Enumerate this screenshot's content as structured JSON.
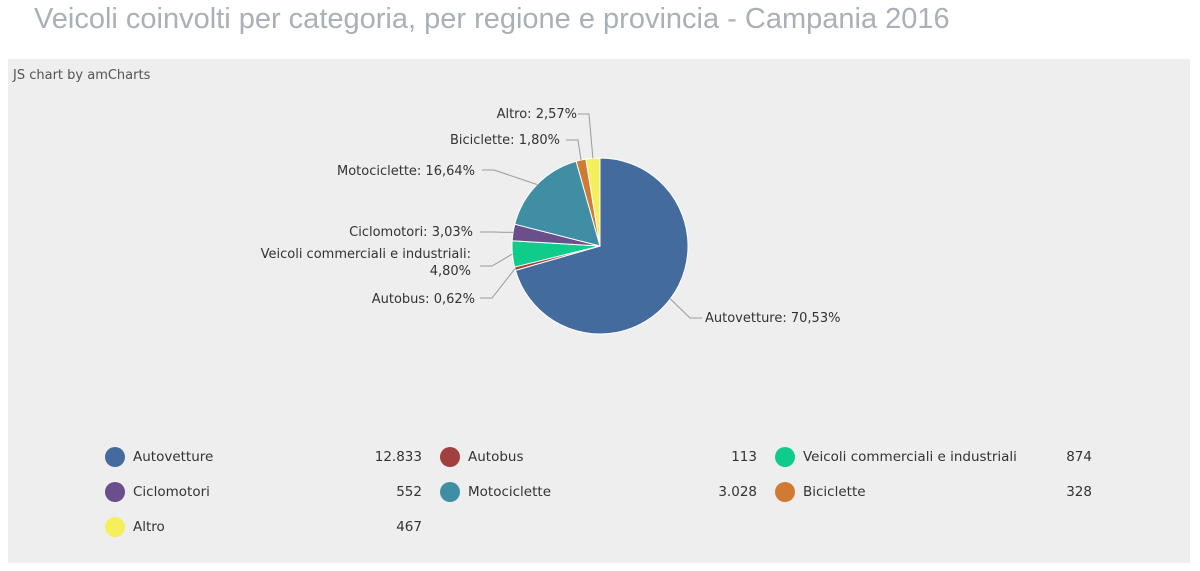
{
  "page": {
    "title": "Veicoli coinvolti per categoria, per regione e provincia - Campania 2016",
    "credit": "JS chart by amCharts"
  },
  "chart_data": {
    "type": "pie",
    "slices": [
      {
        "name": "Autovetture",
        "value": 12833,
        "value_label": "12.833",
        "percent": 70.53,
        "label": "Autovetture: 70,53%",
        "color": "#446b9e"
      },
      {
        "name": "Autobus",
        "value": 113,
        "value_label": "113",
        "percent": 0.62,
        "label": "Autobus: 0,62%",
        "color": "#a0403f"
      },
      {
        "name": "Veicoli commerciali e industriali",
        "value": 874,
        "value_label": "874",
        "percent": 4.8,
        "label_lines": [
          "Veicoli commerciali e industriali:",
          "4,80%"
        ],
        "color": "#0fcc8b"
      },
      {
        "name": "Ciclomotori",
        "value": 552,
        "value_label": "552",
        "percent": 3.03,
        "label": "Ciclomotori: 3,03%",
        "color": "#6a4f8a"
      },
      {
        "name": "Motociclette",
        "value": 3028,
        "value_label": "3.028",
        "percent": 16.64,
        "label": "Motociclette: 16,64%",
        "color": "#3f8ea3"
      },
      {
        "name": "Biciclette",
        "value": 328,
        "value_label": "328",
        "percent": 1.8,
        "label": "Biciclette: 1,80%",
        "color": "#d07a32"
      },
      {
        "name": "Altro",
        "value": 467,
        "value_label": "467",
        "percent": 2.57,
        "label": "Altro: 2,57%",
        "color": "#f4ef5a"
      }
    ],
    "start_direction": "top",
    "direction": "clockwise",
    "legend": {
      "placement": "bottom",
      "columns": 3
    }
  }
}
